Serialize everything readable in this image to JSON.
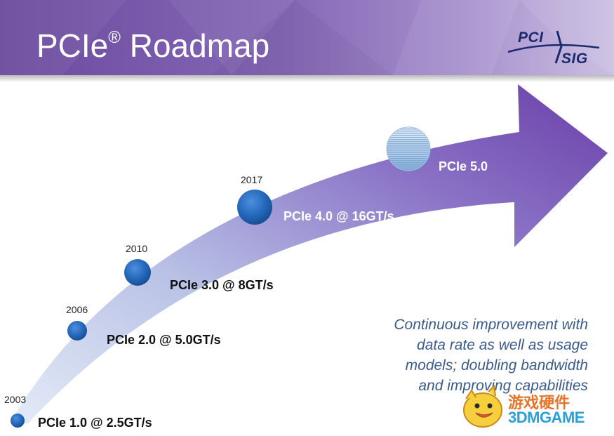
{
  "header": {
    "title": "PCIe",
    "title_mark": "®",
    "title_suffix": " Roadmap",
    "logo": {
      "text_top": "PCI",
      "text_bottom": "SIG"
    }
  },
  "milestones": [
    {
      "year": "2003",
      "label": "PCIe 1.0 @ 2.5GT/s"
    },
    {
      "year": "2006",
      "label": "PCIe 2.0 @ 5.0GT/s"
    },
    {
      "year": "2010",
      "label": "PCIe 3.0 @ 8GT/s"
    },
    {
      "year": "2017",
      "label": "PCIe 4.0 @ 16GT/s"
    },
    {
      "year": "",
      "label": "PCIe 5.0"
    }
  ],
  "note": {
    "lines": [
      "Continuous improvement with",
      "data rate as well as usage",
      "models; doubling bandwidth",
      "and improving capabilities"
    ]
  },
  "watermark": {
    "cn": "游戏硬件",
    "en": "3DMGAME"
  },
  "colors": {
    "header_start": "#6a4a9e",
    "arrow_tip": "#6a3fa8",
    "arrow_tail": "#dde6f5",
    "node_blue": "#1f5fb0",
    "note_text": "#3a5a8e"
  }
}
